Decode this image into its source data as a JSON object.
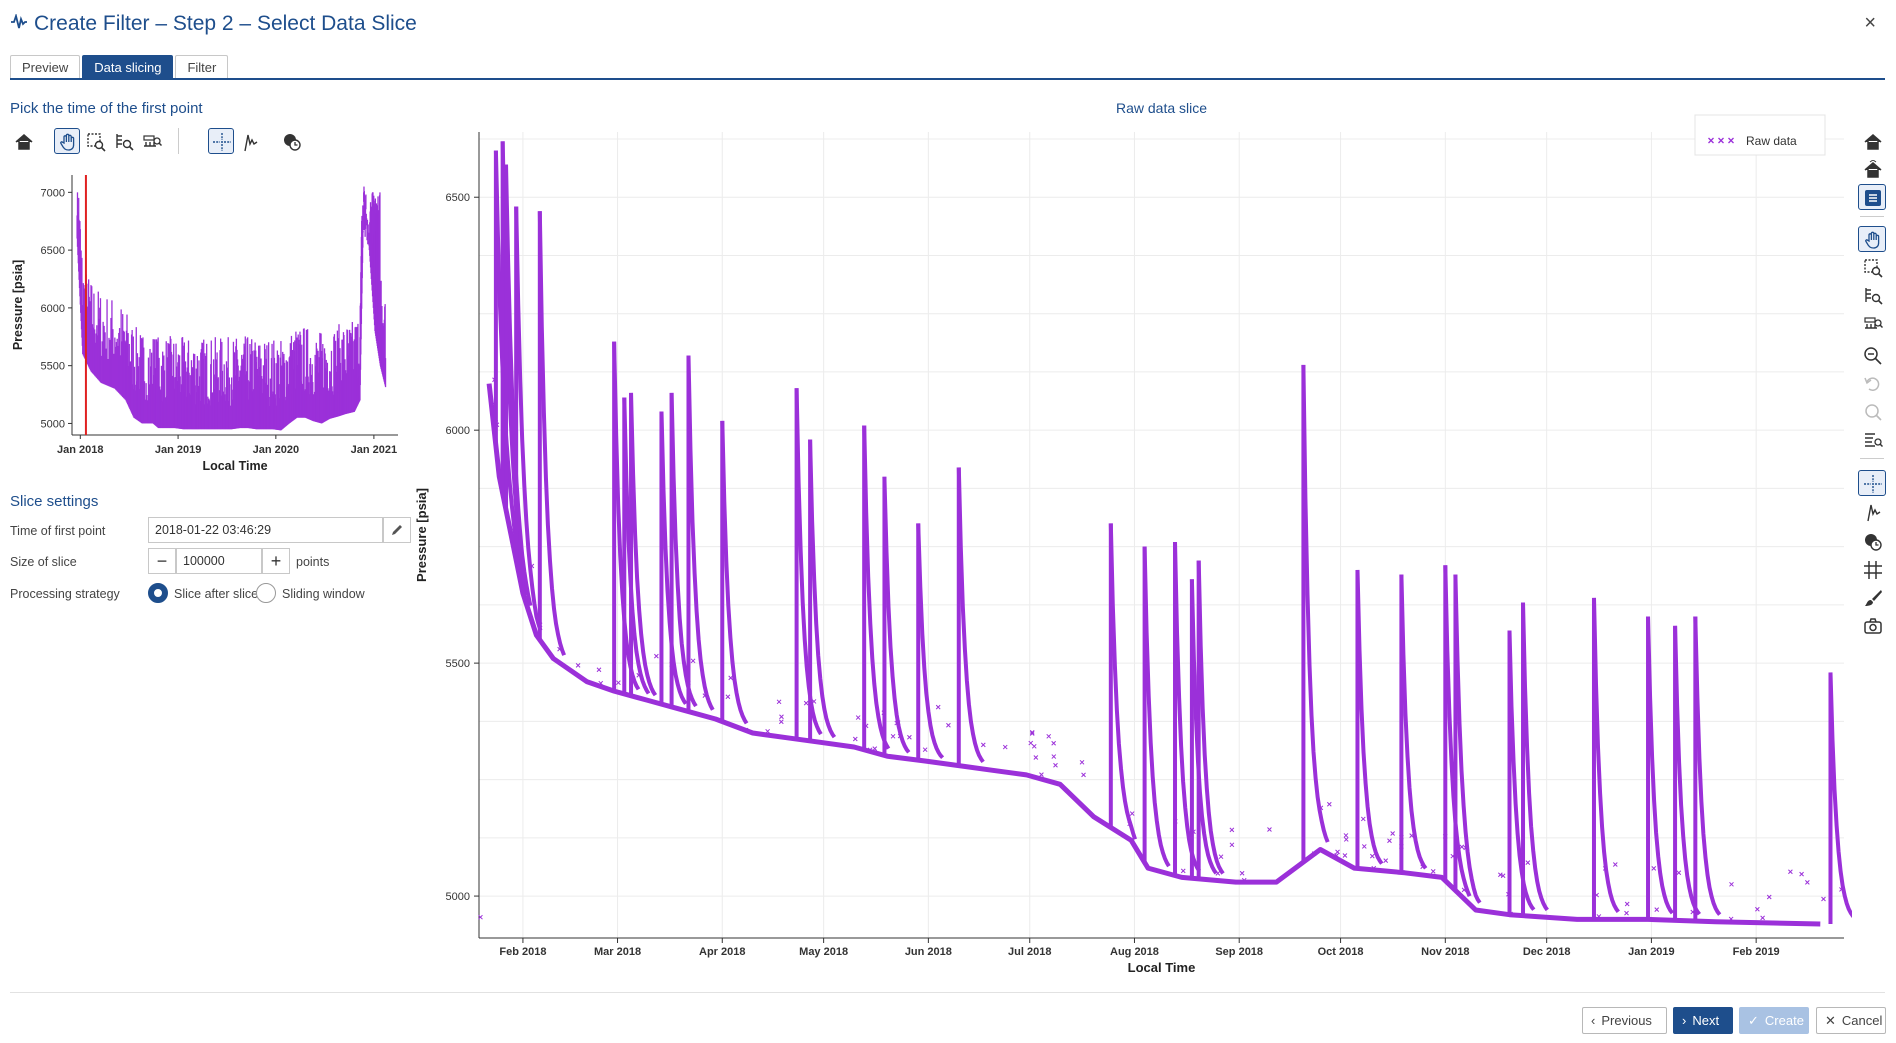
{
  "window": {
    "title": "Create Filter – Step 2 – Select Data Slice",
    "close_label": "×"
  },
  "tabs": [
    {
      "label": "Preview",
      "active": false
    },
    {
      "label": "Data slicing",
      "active": true
    },
    {
      "label": "Filter",
      "active": false
    }
  ],
  "left_panel": {
    "pick_title": "Pick the time of the first point",
    "toolbar_icons": [
      "home-icon",
      "pan-icon",
      "box-zoom-icon",
      "y-zoom-icon",
      "x-zoom-icon",
      "crosshair-icon",
      "pick-point-icon",
      "hover-icon"
    ]
  },
  "slice_settings": {
    "title": "Slice settings",
    "time_label": "Time of first point",
    "time_value": "2018-01-22 03:46:29",
    "size_label": "Size of slice",
    "size_value": "100000",
    "size_unit": "points",
    "strategy_label": "Processing strategy",
    "strategy_options": [
      {
        "label": "Slice after slice",
        "checked": true
      },
      {
        "label": "Sliding window",
        "checked": false
      }
    ]
  },
  "chart_data": [
    {
      "type": "scatter",
      "title": "",
      "xlabel": "Local Time",
      "ylabel": "Pressure [psia]",
      "x_ticks": [
        "Jan 2018",
        "Jan 2019",
        "Jan 2020",
        "Jan 2021"
      ],
      "y_ticks": [
        5000,
        5500,
        6000,
        6500,
        7000
      ],
      "ylim": [
        4900,
        7150
      ],
      "xlim": [
        "2017-12-01",
        "2021-04-01"
      ],
      "marker_color": "#9b30d9",
      "selected_time_marker": {
        "x": "2018-01-22",
        "color": "#e02020"
      },
      "series": [
        {
          "x": [
            "2017-12-20",
            "2018-01-10",
            "2018-02-10",
            "2018-03-20",
            "2018-05-10",
            "2018-06-20",
            "2018-07-20",
            "2018-08-20",
            "2018-09-30",
            "2018-10-20",
            "2018-11-20",
            "2018-12-20",
            "2019-01-20",
            "2019-02-20",
            "2019-03-20",
            "2019-04-20",
            "2019-05-20",
            "2019-06-20",
            "2019-07-20",
            "2019-08-20",
            "2019-09-20",
            "2019-10-20",
            "2019-11-20",
            "2019-12-20",
            "2020-01-20",
            "2020-02-20",
            "2020-03-20",
            "2020-04-20",
            "2020-05-20",
            "2020-06-20",
            "2020-07-20",
            "2020-08-20",
            "2020-09-15",
            "2020-10-20",
            "2020-11-10",
            "2020-11-25",
            "2020-12-15",
            "2021-01-05",
            "2021-01-25",
            "2021-02-15"
          ],
          "y": [
            6600,
            5600,
            5450,
            5350,
            5300,
            5200,
            5050,
            5000,
            5000,
            4960,
            4960,
            4960,
            4950,
            4950,
            4950,
            4950,
            4950,
            4950,
            4950,
            4960,
            4960,
            4950,
            4950,
            4950,
            4940,
            5000,
            5050,
            5050,
            5020,
            5000,
            5040,
            5060,
            5080,
            5100,
            5200,
            7050,
            6500,
            5800,
            5500,
            5300
          ]
        }
      ]
    },
    {
      "type": "scatter",
      "title": "Raw data slice",
      "xlabel": "Local Time",
      "ylabel": "Pressure [psia]",
      "legend": {
        "position": "top-right",
        "entries": [
          "Raw data"
        ]
      },
      "x_ticks": [
        "Feb 2018",
        "Mar 2018",
        "Apr 2018",
        "May 2018",
        "Jun 2018",
        "Jul 2018",
        "Aug 2018",
        "Sep 2018",
        "Oct 2018",
        "Nov 2018",
        "Dec 2018",
        "Jan 2019",
        "Feb 2019"
      ],
      "y_ticks": [
        5000,
        5500,
        6000,
        6500
      ],
      "ylim": [
        4910,
        6640
      ],
      "xlim": [
        "2018-01-19",
        "2019-02-27"
      ],
      "grid": true,
      "marker_color": "#9b30d9",
      "series": [
        {
          "name": "Raw data",
          "baseline": [
            [
              "2018-01-22",
              6100
            ],
            [
              "2018-01-25",
              5900
            ],
            [
              "2018-02-01",
              5650
            ],
            [
              "2018-02-05",
              5560
            ],
            [
              "2018-02-10",
              5510
            ],
            [
              "2018-02-20",
              5460
            ],
            [
              "2018-02-28",
              5440
            ],
            [
              "2018-03-10",
              5420
            ],
            [
              "2018-03-20",
              5400
            ],
            [
              "2018-03-30",
              5380
            ],
            [
              "2018-04-10",
              5350
            ],
            [
              "2018-04-20",
              5340
            ],
            [
              "2018-04-30",
              5330
            ],
            [
              "2018-05-10",
              5320
            ],
            [
              "2018-05-20",
              5300
            ],
            [
              "2018-05-31",
              5290
            ],
            [
              "2018-06-10",
              5280
            ],
            [
              "2018-06-20",
              5270
            ],
            [
              "2018-06-30",
              5260
            ],
            [
              "2018-07-10",
              5240
            ],
            [
              "2018-07-20",
              5170
            ],
            [
              "2018-07-31",
              5120
            ],
            [
              "2018-08-05",
              5060
            ],
            [
              "2018-08-15",
              5040
            ],
            [
              "2018-08-31",
              5030
            ],
            [
              "2018-09-12",
              5030
            ],
            [
              "2018-09-25",
              5100
            ],
            [
              "2018-10-05",
              5060
            ],
            [
              "2018-10-20",
              5050
            ],
            [
              "2018-10-31",
              5040
            ],
            [
              "2018-11-10",
              4970
            ],
            [
              "2018-11-20",
              4960
            ],
            [
              "2018-12-10",
              4950
            ],
            [
              "2018-12-31",
              4950
            ],
            [
              "2019-01-20",
              4945
            ],
            [
              "2019-02-20",
              4940
            ]
          ],
          "spikes": [
            [
              "2018-01-24",
              6600
            ],
            [
              "2018-01-26",
              6620
            ],
            [
              "2018-01-27",
              6570
            ],
            [
              "2018-01-30",
              6480
            ],
            [
              "2018-02-06",
              6470
            ],
            [
              "2018-02-28",
              6190
            ],
            [
              "2018-03-03",
              6070
            ],
            [
              "2018-03-05",
              6080
            ],
            [
              "2018-03-14",
              6040
            ],
            [
              "2018-03-17",
              6080
            ],
            [
              "2018-03-22",
              6160
            ],
            [
              "2018-04-01",
              6020
            ],
            [
              "2018-04-23",
              6090
            ],
            [
              "2018-04-27",
              5980
            ],
            [
              "2018-05-13",
              6010
            ],
            [
              "2018-05-19",
              5900
            ],
            [
              "2018-05-29",
              5800
            ],
            [
              "2018-06-10",
              5920
            ],
            [
              "2018-07-25",
              5800
            ],
            [
              "2018-08-04",
              5750
            ],
            [
              "2018-08-13",
              5760
            ],
            [
              "2018-08-18",
              5680
            ],
            [
              "2018-08-20",
              5720
            ],
            [
              "2018-09-20",
              6140
            ],
            [
              "2018-10-06",
              5700
            ],
            [
              "2018-10-19",
              5690
            ],
            [
              "2018-11-01",
              5710
            ],
            [
              "2018-11-04",
              5690
            ],
            [
              "2018-11-20",
              5570
            ],
            [
              "2018-11-24",
              5630
            ],
            [
              "2018-12-15",
              5640
            ],
            [
              "2018-12-31",
              5600
            ],
            [
              "2019-01-08",
              5580
            ],
            [
              "2019-01-14",
              5600
            ],
            [
              "2019-02-23",
              5480
            ]
          ]
        }
      ]
    }
  ],
  "right_toolbar_icons": [
    "home-icon",
    "home-reset-icon",
    "legend-icon",
    "pan-icon",
    "box-zoom-icon",
    "y-zoom-icon",
    "x-zoom-icon",
    "zoom-out-icon",
    "undo-icon",
    "redo-icon",
    "select-zoom-icon",
    "crosshair-icon",
    "pick-point-icon",
    "hover-icon",
    "grid-icon",
    "brush-icon",
    "camera-icon"
  ],
  "footer": {
    "previous_label": "Previous",
    "next_label": "Next",
    "create_label": "Create",
    "cancel_label": "Cancel"
  },
  "colors": {
    "accent": "#1e4e8c",
    "data": "#9b30d9",
    "marker": "#e02020"
  }
}
